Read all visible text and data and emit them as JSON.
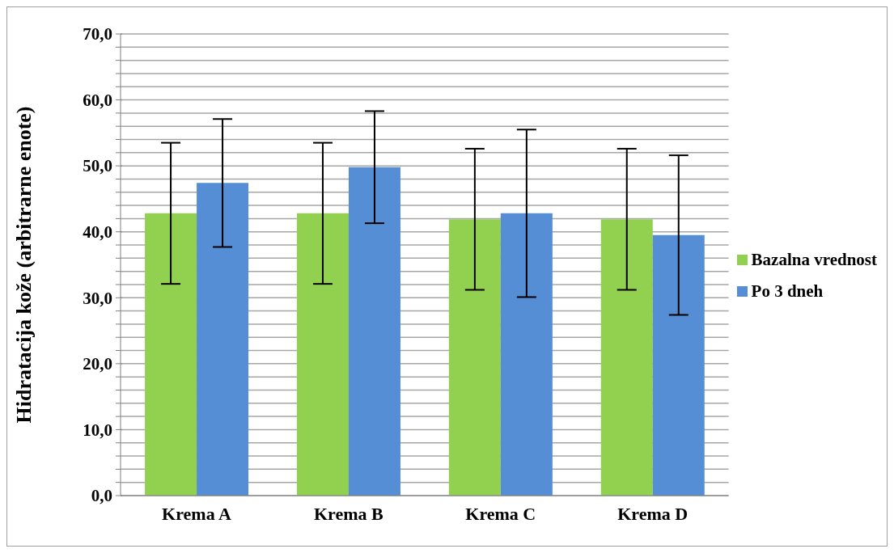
{
  "chart_data": {
    "type": "bar",
    "ylabel": "Hidratacija kože (arbitrarne enote)",
    "categories": [
      "Krema A",
      "Krema B",
      "Krema C",
      "Krema D"
    ],
    "series": [
      {
        "name": "Bazalna vrednost",
        "color": "#92d050",
        "values": [
          42.8,
          42.8,
          41.9,
          41.9
        ],
        "errors": [
          10.7,
          10.7,
          10.7,
          10.7
        ]
      },
      {
        "name": "Po 3 dneh",
        "color": "#558ed5",
        "values": [
          47.4,
          49.8,
          42.8,
          39.5
        ],
        "errors": [
          9.7,
          8.5,
          12.7,
          12.1
        ]
      }
    ],
    "ylim": [
      0,
      70
    ],
    "yticks": [
      {
        "value": 0,
        "label": "0,0"
      },
      {
        "value": 2,
        "label": null
      },
      {
        "value": 4,
        "label": null
      },
      {
        "value": 6,
        "label": null
      },
      {
        "value": 8,
        "label": null
      },
      {
        "value": 10,
        "label": "10,0"
      },
      {
        "value": 12,
        "label": null
      },
      {
        "value": 14,
        "label": null
      },
      {
        "value": 16,
        "label": null
      },
      {
        "value": 18,
        "label": null
      },
      {
        "value": 20,
        "label": "20,0"
      },
      {
        "value": 22,
        "label": null
      },
      {
        "value": 24,
        "label": null
      },
      {
        "value": 26,
        "label": null
      },
      {
        "value": 28,
        "label": null
      },
      {
        "value": 30,
        "label": "30,0"
      },
      {
        "value": 32,
        "label": null
      },
      {
        "value": 34,
        "label": null
      },
      {
        "value": 36,
        "label": null
      },
      {
        "value": 38,
        "label": null
      },
      {
        "value": 40,
        "label": "40,0"
      },
      {
        "value": 42,
        "label": null
      },
      {
        "value": 44,
        "label": null
      },
      {
        "value": 46,
        "label": null
      },
      {
        "value": 48,
        "label": null
      },
      {
        "value": 50,
        "label": "50,0"
      },
      {
        "value": 52,
        "label": null
      },
      {
        "value": 54,
        "label": null
      },
      {
        "value": 56,
        "label": null
      },
      {
        "value": 58,
        "label": null
      },
      {
        "value": 60,
        "label": "60,0"
      },
      {
        "value": 62,
        "label": null
      },
      {
        "value": 64,
        "label": null
      },
      {
        "value": 66,
        "label": null
      },
      {
        "value": 68,
        "label": null
      },
      {
        "value": 70,
        "label": "70,0"
      }
    ],
    "grid": "y",
    "legend": "right"
  }
}
